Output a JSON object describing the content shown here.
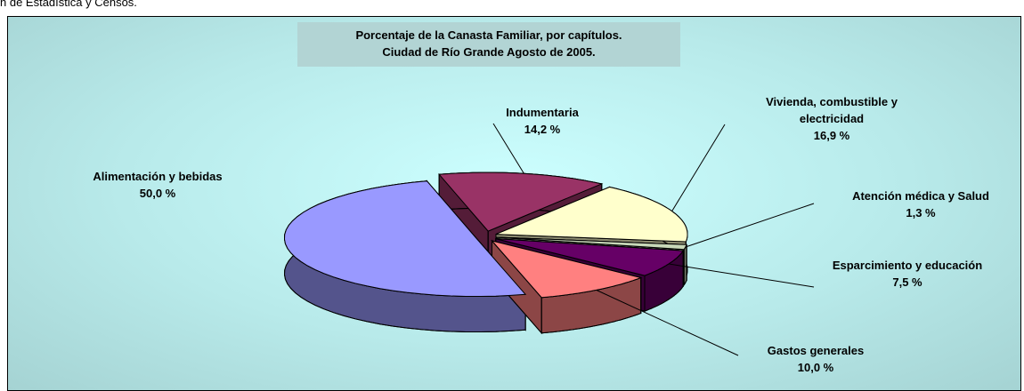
{
  "caption": "n de Estadística y Censos.",
  "chart_data": {
    "type": "pie3d",
    "title": [
      "Porcentaje de la Canasta Familiar, por capítulos.",
      "Ciudad de Río Grande Agosto de 2005."
    ],
    "categories": [
      "Alimentación y bebidas",
      "Indumentaria",
      "Vivienda, combustible y electricidad",
      "Atención médica y Salud",
      "Esparcimiento y educación",
      "Gastos generales"
    ],
    "values": [
      50.0,
      14.2,
      16.9,
      1.3,
      7.5,
      10.0
    ],
    "value_labels": [
      "50,0 %",
      "14,2 %",
      "16,9 %",
      "1,3 %",
      "7,5 %",
      "10,0 %"
    ],
    "colors": [
      "#9999ff",
      "#993366",
      "#ffffcc",
      "#c8d8b8",
      "#660066",
      "#ff8080"
    ]
  }
}
